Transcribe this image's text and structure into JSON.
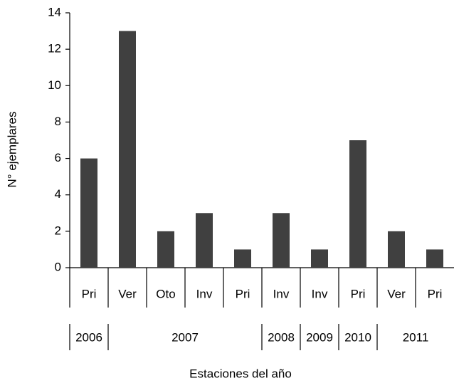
{
  "chart_data": {
    "type": "bar",
    "categories": [
      "Pri",
      "Ver",
      "Oto",
      "Inv",
      "Pri",
      "Inv",
      "Inv",
      "Pri",
      "Ver",
      "Pri"
    ],
    "values": [
      6,
      13,
      2,
      3,
      1,
      3,
      1,
      7,
      2,
      1
    ],
    "groups": [
      {
        "label": "2006",
        "size": 1
      },
      {
        "label": "2007",
        "size": 4
      },
      {
        "label": "2008",
        "size": 1
      },
      {
        "label": "2009",
        "size": 1
      },
      {
        "label": "2010",
        "size": 1
      },
      {
        "label": "2011",
        "size": 2
      }
    ],
    "color": "#404040",
    "ylim": [
      0,
      14
    ],
    "yticks": [
      0,
      2,
      4,
      6,
      8,
      10,
      12,
      14
    ],
    "x_label": "Estaciones del año",
    "y_label": "N° ejemplares"
  }
}
